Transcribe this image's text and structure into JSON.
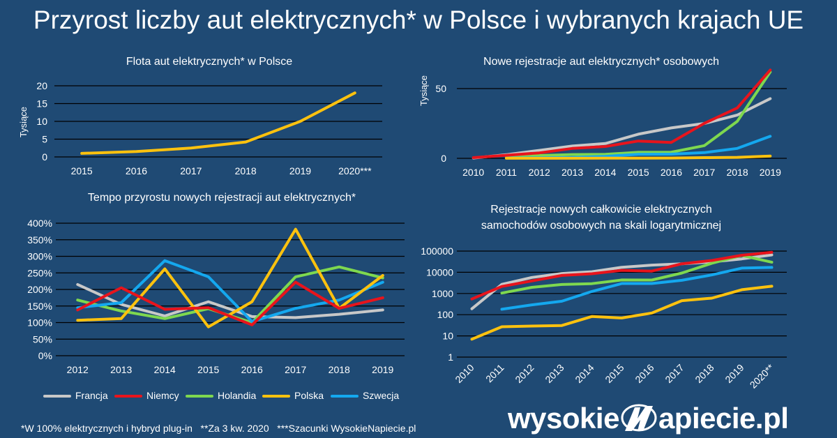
{
  "title": "Przyrost liczby aut elektrycznych* w Polsce i wybranych krajach UE",
  "colors": {
    "Francja": "#c8c8c8",
    "Niemcy": "#e8141c",
    "Holandia": "#7ed84f",
    "Polska": "#ffc20e",
    "Szwecja": "#14a8ef",
    "background": "#1f4a74"
  },
  "legend": [
    "Francja",
    "Niemcy",
    "Holandia",
    "Polska",
    "Szwecja"
  ],
  "footnote": "*W 100% elektrycznych i hybryd plug-in   **Za 3 kw. 2020   ***Szacunki WysokieNapiecie.pl",
  "brand": {
    "before": "wysokie",
    "after": "apiecie.pl",
    "icon": "lightning-n-logo"
  },
  "chart_data": [
    {
      "type": "line",
      "title": "Flota aut elektrycznych* w Polsce",
      "ylabel": "Tysiące",
      "categories": [
        "2015",
        "2016",
        "2017",
        "2018",
        "2019",
        "2020***"
      ],
      "yticks": [
        "0",
        "5",
        "10",
        "15",
        "20"
      ],
      "ylim": [
        0,
        20
      ],
      "series": [
        {
          "name": "Polska",
          "values": [
            1.0,
            1.5,
            2.5,
            4.2,
            10.0,
            18.0
          ]
        }
      ]
    },
    {
      "type": "line",
      "title": "Nowe rejestracje aut elektrycznych* osobowych",
      "ylabel": "Tysiące",
      "categories": [
        "2010",
        "2011",
        "2012",
        "2013",
        "2014",
        "2015",
        "2016",
        "2017",
        "2018",
        "2019"
      ],
      "yticks": [
        "0",
        "50"
      ],
      "ylim": [
        0,
        50
      ],
      "series": [
        {
          "name": "Francja",
          "values": [
            0.2,
            2.6,
            5.7,
            8.8,
            10.6,
            17.3,
            21.8,
            25.0,
            31.0,
            42.8
          ]
        },
        {
          "name": "Niemcy",
          "values": [
            0.5,
            2.2,
            3.9,
            7.1,
            8.5,
            12.4,
            11.4,
            25.1,
            36.1,
            63.3
          ]
        },
        {
          "name": "Holandia",
          "values": [
            null,
            1.2,
            2.0,
            2.7,
            2.9,
            4.3,
            4.4,
            9.1,
            26.5,
            61.9
          ]
        },
        {
          "name": "Polska",
          "values": [
            null,
            0.03,
            0.04,
            0.04,
            0.1,
            0.1,
            0.2,
            0.5,
            0.7,
            1.6
          ]
        },
        {
          "name": "Szwecja",
          "values": [
            null,
            0.2,
            0.4,
            0.6,
            1.4,
            2.9,
            3.0,
            4.1,
            7.1,
            15.8
          ]
        }
      ]
    },
    {
      "type": "line",
      "title": "Tempo przyrostu nowych rejestracji aut elektrycznych*",
      "categories": [
        "2012",
        "2013",
        "2014",
        "2015",
        "2016",
        "2017",
        "2018",
        "2019"
      ],
      "yticks": [
        "0%",
        "50%",
        "100%",
        "150%",
        "200%",
        "250%",
        "300%",
        "350%",
        "400%"
      ],
      "ylim": [
        0,
        400
      ],
      "series": [
        {
          "name": "Francja",
          "values": [
            215,
            155,
            120,
            163,
            118,
            115,
            125,
            138
          ]
        },
        {
          "name": "Niemcy",
          "values": [
            138,
            205,
            140,
            145,
            93,
            222,
            143,
            175
          ]
        },
        {
          "name": "Holandia",
          "values": [
            168,
            135,
            112,
            142,
            100,
            238,
            268,
            235
          ]
        },
        {
          "name": "Polska",
          "values": [
            107,
            112,
            262,
            87,
            163,
            382,
            143,
            242
          ]
        },
        {
          "name": "Szwecja",
          "values": [
            145,
            160,
            287,
            238,
            103,
            143,
            168,
            222
          ]
        }
      ]
    },
    {
      "type": "line",
      "title": "Rejestracje nowych całkowicie elektrycznych",
      "subtitle": "samochodów osobowych na skali logarytmicznej",
      "scale": "log",
      "categories": [
        "2010",
        "2011",
        "2012",
        "2013",
        "2014",
        "2015",
        "2016",
        "2017",
        "2018",
        "2019",
        "2020**"
      ],
      "yticks": [
        "1",
        "10",
        "100",
        "1000",
        "10000",
        "100000"
      ],
      "ylim": [
        1,
        100000
      ],
      "series": [
        {
          "name": "Francja",
          "values": [
            190,
            2700,
            5700,
            8800,
            10600,
            17300,
            21800,
            25000,
            31000,
            42800,
            66000
          ]
        },
        {
          "name": "Niemcy",
          "values": [
            550,
            2150,
            3900,
            7100,
            8500,
            12400,
            11400,
            25100,
            36100,
            63300,
            88000
          ]
        },
        {
          "name": "Holandia",
          "values": [
            null,
            1050,
            1950,
            2650,
            2900,
            4350,
            4300,
            9200,
            26500,
            61900,
            30000
          ]
        },
        {
          "name": "Polska",
          "values": [
            7,
            27,
            29,
            31,
            82,
            70,
            120,
            460,
            600,
            1500,
            2200
          ]
        },
        {
          "name": "Szwecja",
          "values": [
            null,
            180,
            290,
            430,
            1250,
            2950,
            2950,
            4200,
            7500,
            15800,
            17000
          ]
        }
      ]
    }
  ]
}
